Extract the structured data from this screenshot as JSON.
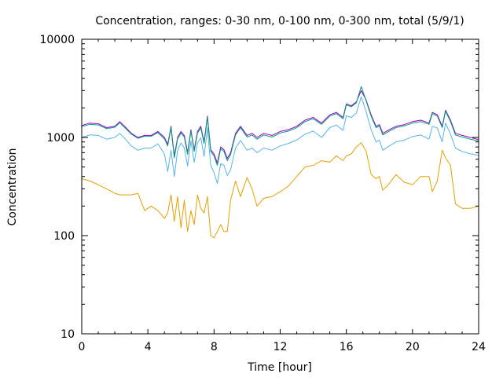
{
  "chart_data": {
    "type": "line",
    "title": "Concentration, ranges: 0-30 nm, 0-100 nm, 0-300 nm, total (5/9/1)",
    "xlabel": "Time [hour]",
    "ylabel": "Concentration",
    "xlim": [
      0,
      24
    ],
    "ylim": [
      10,
      10000
    ],
    "yscale": "log",
    "grid": false,
    "legend": "none",
    "x_ticks": [
      0,
      4,
      8,
      12,
      16,
      20,
      24
    ],
    "x_tick_labels": [
      "0",
      "4",
      "8",
      "12",
      "16",
      "20",
      "24"
    ],
    "y_ticks": [
      10,
      100,
      1000,
      10000
    ],
    "y_tick_labels": [
      "10",
      "100",
      "1000",
      "10000"
    ],
    "x": [
      0,
      0.5,
      1,
      1.5,
      2,
      2.3,
      2.6,
      3,
      3.4,
      3.8,
      4.2,
      4.6,
      5.0,
      5.2,
      5.4,
      5.6,
      5.8,
      6.0,
      6.2,
      6.4,
      6.6,
      6.8,
      7.0,
      7.2,
      7.4,
      7.6,
      7.8,
      8.0,
      8.2,
      8.4,
      8.6,
      8.8,
      9.0,
      9.3,
      9.6,
      10.0,
      10.3,
      10.6,
      11.0,
      11.5,
      12,
      12.5,
      13,
      13.5,
      14,
      14.5,
      15,
      15.4,
      15.8,
      16.0,
      16.3,
      16.6,
      16.9,
      17.2,
      17.5,
      17.8,
      18.0,
      18.2,
      18.6,
      19.0,
      19.5,
      20,
      20.5,
      21,
      21.2,
      21.5,
      21.8,
      22.0,
      22.3,
      22.6,
      23,
      23.5,
      24
    ],
    "series": [
      {
        "color": "#9400d3",
        "values": [
          1320,
          1400,
          1380,
          1260,
          1300,
          1450,
          1300,
          1100,
          1000,
          1050,
          1050,
          1150,
          1000,
          850,
          1300,
          650,
          1000,
          1150,
          1050,
          700,
          1200,
          750,
          1150,
          1300,
          900,
          1650,
          750,
          680,
          550,
          800,
          750,
          610,
          700,
          1100,
          1300,
          1050,
          1100,
          1000,
          1100,
          1050,
          1150,
          1200,
          1300,
          1500,
          1600,
          1400,
          1700,
          1800,
          1600,
          2200,
          2100,
          2300,
          3000,
          2400,
          1700,
          1300,
          1350,
          1100,
          1200,
          1300,
          1350,
          1450,
          1500,
          1400,
          1800,
          1700,
          1300,
          1900,
          1500,
          1100,
          1050,
          1000,
          950
        ]
      },
      {
        "color": "#009e73",
        "values": [
          1290,
          1360,
          1340,
          1230,
          1270,
          1410,
          1260,
          1080,
          980,
          1030,
          1030,
          1120,
          970,
          820,
          1260,
          620,
          970,
          1110,
          1010,
          670,
          1160,
          720,
          1110,
          1250,
          870,
          1600,
          720,
          650,
          520,
          770,
          720,
          580,
          670,
          1060,
          1260,
          1010,
          1060,
          960,
          1060,
          1010,
          1110,
          1160,
          1260,
          1450,
          1550,
          1360,
          1650,
          1750,
          1550,
          2150,
          2050,
          2250,
          3300,
          2350,
          1650,
          1260,
          1310,
          1060,
          1160,
          1260,
          1310,
          1400,
          1450,
          1360,
          1750,
          1650,
          1260,
          1850,
          1450,
          1060,
          1010,
          960,
          920
        ]
      },
      {
        "color": "#56b4e9",
        "values": [
          1000,
          1060,
          1050,
          960,
          1000,
          1100,
          980,
          820,
          740,
          780,
          780,
          860,
          680,
          450,
          740,
          400,
          740,
          880,
          780,
          510,
          920,
          560,
          880,
          990,
          640,
          1250,
          520,
          440,
          340,
          540,
          520,
          410,
          470,
          780,
          930,
          740,
          780,
          700,
          780,
          740,
          820,
          870,
          940,
          1080,
          1160,
          1000,
          1260,
          1340,
          1180,
          1660,
          1600,
          1760,
          2600,
          1820,
          1200,
          900,
          940,
          740,
          820,
          900,
          940,
          1020,
          1060,
          960,
          1300,
          1250,
          900,
          1400,
          1080,
          780,
          720,
          680,
          660
        ]
      },
      {
        "color": "#e69f00",
        "values": [
          380,
          360,
          330,
          300,
          270,
          260,
          260,
          260,
          270,
          180,
          200,
          180,
          150,
          170,
          260,
          140,
          250,
          120,
          230,
          110,
          180,
          130,
          260,
          190,
          170,
          250,
          100,
          95,
          110,
          130,
          110,
          110,
          230,
          360,
          250,
          390,
          300,
          200,
          240,
          250,
          280,
          320,
          400,
          500,
          520,
          580,
          560,
          650,
          580,
          650,
          680,
          800,
          880,
          720,
          420,
          380,
          400,
          290,
          340,
          420,
          350,
          330,
          400,
          400,
          280,
          360,
          740,
          620,
          520,
          210,
          190,
          190,
          200
        ]
      }
    ]
  }
}
